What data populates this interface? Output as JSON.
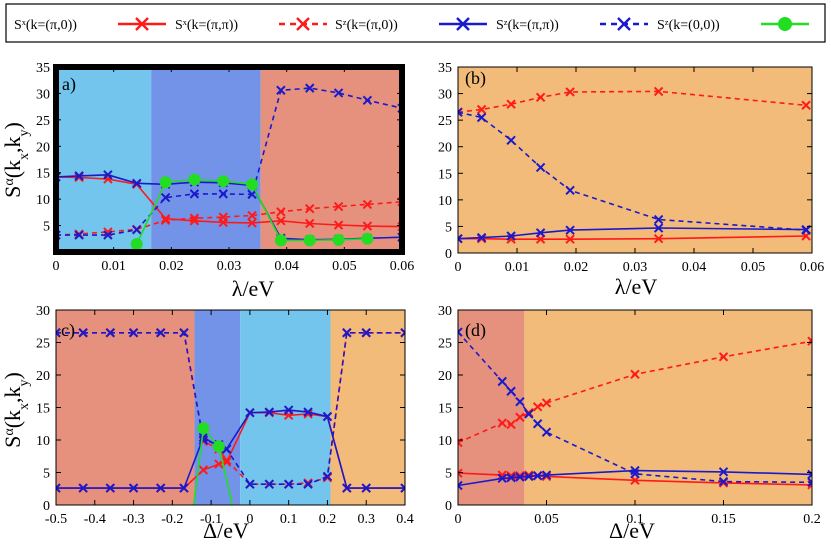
{
  "legend": [
    {
      "label": "Sˣ(k=(π,0))",
      "color": "#ff1a1a",
      "dash": "solid",
      "marker": "x"
    },
    {
      "label": "Sˣ(k=(π,π))",
      "color": "#ff1a1a",
      "dash": "dashed",
      "marker": "x"
    },
    {
      "label": "Sᶻ(k=(π,0))",
      "color": "#1a1acc",
      "dash": "solid",
      "marker": "x"
    },
    {
      "label": "Sᶻ(k=(π,π))",
      "color": "#1a1acc",
      "dash": "dashed",
      "marker": "x"
    },
    {
      "label": "Sᶻ(k=(0,0))",
      "color": "#22dd22",
      "dash": "solid",
      "marker": "circle"
    }
  ],
  "colors": {
    "light_blue": "#73c5ee",
    "mid_blue": "#7393e8",
    "salmon": "#e5917e",
    "orange": "#f2bb7a",
    "red": "#ff1a1a",
    "blue": "#1a1acc",
    "green": "#22dd22",
    "frame_a": "#000000"
  },
  "chart_data": [
    {
      "panel": "a)",
      "type": "line",
      "xlabel": "λ/eV",
      "ylabel": "Sα(kx,ky)",
      "xlim": [
        0,
        0.06
      ],
      "ylim": [
        0,
        35
      ],
      "xticks": [
        "0",
        "0.01",
        "0.02",
        "0.03",
        "0.04",
        "0.05",
        "0.06"
      ],
      "yticks": [
        "5",
        "10",
        "15",
        "20",
        "25",
        "30",
        "35"
      ],
      "regions": [
        {
          "from": 0,
          "to": 0.0165,
          "color": "light_blue"
        },
        {
          "from": 0.0165,
          "to": 0.0355,
          "color": "mid_blue"
        },
        {
          "from": 0.0355,
          "to": 0.06,
          "color": "salmon"
        }
      ],
      "series": [
        {
          "name": "Sˣ(k=(π,0))",
          "x": [
            0,
            0.004,
            0.009,
            0.014,
            0.019,
            0.024,
            0.029,
            0.034,
            0.039,
            0.044,
            0.049,
            0.054,
            0.06
          ],
          "y": [
            14.2,
            14.1,
            13.8,
            12.8,
            6.3,
            5.9,
            5.6,
            5.5,
            5.9,
            5.4,
            5.1,
            4.9,
            4.8
          ]
        },
        {
          "name": "Sˣ(k=(π,π))",
          "x": [
            0,
            0.004,
            0.009,
            0.014,
            0.019,
            0.024,
            0.029,
            0.034,
            0.039,
            0.044,
            0.049,
            0.054,
            0.06
          ],
          "y": [
            3.2,
            3.4,
            3.8,
            4.3,
            6.0,
            6.4,
            6.6,
            6.9,
            7.6,
            8.2,
            8.6,
            9.0,
            9.5
          ]
        },
        {
          "name": "Sᶻ(k=(π,0))",
          "x": [
            0,
            0.004,
            0.009,
            0.014,
            0.019,
            0.024,
            0.029,
            0.034,
            0.039,
            0.044,
            0.049,
            0.054,
            0.06
          ],
          "y": [
            14.2,
            14.4,
            14.6,
            13.0,
            12.8,
            13.2,
            13.1,
            12.6,
            2.6,
            2.3,
            2.4,
            2.6,
            2.8
          ]
        },
        {
          "name": "Sᶻ(k=(π,π))",
          "x": [
            0,
            0.004,
            0.009,
            0.014,
            0.019,
            0.024,
            0.029,
            0.034,
            0.039,
            0.044,
            0.049,
            0.054,
            0.06
          ],
          "y": [
            3.2,
            3.2,
            3.2,
            4.2,
            10.3,
            11.0,
            11.0,
            10.9,
            30.6,
            31.0,
            30.1,
            28.7,
            27.2
          ]
        },
        {
          "name": "Sᶻ(k=(0,0))",
          "x": [
            0.014,
            0.019,
            0.024,
            0.029,
            0.034,
            0.039,
            0.044,
            0.049,
            0.054
          ],
          "y": [
            1.5,
            13.2,
            13.7,
            13.4,
            12.8,
            2.2,
            2.2,
            2.3,
            2.5
          ]
        }
      ]
    },
    {
      "panel": "(b)",
      "type": "line",
      "xlabel": "λ/eV",
      "ylabel": "",
      "xlim": [
        0,
        0.06
      ],
      "ylim": [
        0,
        35
      ],
      "xticks": [
        "0",
        "0.01",
        "0.02",
        "0.03",
        "0.04",
        "0.05",
        "0.06"
      ],
      "yticks": [
        "0",
        "5",
        "10",
        "15",
        "20",
        "25",
        "30",
        "35"
      ],
      "regions": [
        {
          "from": 0,
          "to": 0.06,
          "color": "orange"
        }
      ],
      "series": [
        {
          "name": "Sˣ(k=(π,0))",
          "x": [
            0,
            0.004,
            0.009,
            0.014,
            0.019,
            0.034,
            0.059
          ],
          "y": [
            2.7,
            2.7,
            2.6,
            2.6,
            2.6,
            2.7,
            3.2
          ]
        },
        {
          "name": "Sˣ(k=(π,π))",
          "x": [
            0,
            0.004,
            0.009,
            0.014,
            0.019,
            0.034,
            0.059
          ],
          "y": [
            26.5,
            27.0,
            28.0,
            29.3,
            30.3,
            30.4,
            27.8
          ]
        },
        {
          "name": "Sᶻ(k=(π,0))",
          "x": [
            0,
            0.004,
            0.009,
            0.014,
            0.019,
            0.034,
            0.059
          ],
          "y": [
            2.7,
            2.9,
            3.2,
            3.8,
            4.3,
            4.7,
            4.4
          ]
        },
        {
          "name": "Sᶻ(k=(π,π))",
          "x": [
            0,
            0.004,
            0.009,
            0.014,
            0.019,
            0.034,
            0.059
          ],
          "y": [
            26.5,
            25.5,
            21.2,
            16.1,
            11.8,
            6.3,
            4.3
          ]
        }
      ]
    },
    {
      "panel": "c)",
      "type": "line",
      "xlabel": "Δ/eV",
      "ylabel": "Sα(kx,ky)",
      "xlim": [
        -0.5,
        0.4
      ],
      "ylim": [
        0,
        30
      ],
      "xticks": [
        "-0.5",
        "-0.4",
        "-0.3",
        "-0.2",
        "-0.1",
        "0",
        "0.1",
        "0.2",
        "0.3",
        "0.4"
      ],
      "yticks": [
        "0",
        "5",
        "10",
        "15",
        "20",
        "25",
        "30"
      ],
      "regions": [
        {
          "from": -0.5,
          "to": -0.143,
          "color": "salmon"
        },
        {
          "from": -0.143,
          "to": -0.025,
          "color": "mid_blue"
        },
        {
          "from": -0.025,
          "to": 0.208,
          "color": "light_blue"
        },
        {
          "from": 0.208,
          "to": 0.4,
          "color": "orange"
        }
      ],
      "series": [
        {
          "name": "Sˣ(k=(π,0))",
          "x": [
            -0.5,
            -0.43,
            -0.36,
            -0.3,
            -0.23,
            -0.17,
            -0.12,
            -0.08,
            -0.06,
            0,
            0.05,
            0.1,
            0.15,
            0.2,
            0.25,
            0.3,
            0.4
          ],
          "y": [
            2.6,
            2.6,
            2.6,
            2.6,
            2.6,
            2.6,
            5.4,
            6.3,
            6.6,
            14.2,
            14.2,
            13.8,
            14.0,
            13.6,
            2.6,
            2.6,
            2.6
          ]
        },
        {
          "name": "Sˣ(k=(π,π))",
          "x": [
            -0.5,
            -0.43,
            -0.36,
            -0.3,
            -0.23,
            -0.17,
            -0.12,
            -0.08,
            -0.06,
            0,
            0.05,
            0.1,
            0.15,
            0.2,
            0.25,
            0.3,
            0.4
          ],
          "y": [
            26.5,
            26.5,
            26.5,
            26.5,
            26.5,
            26.5,
            9.8,
            8.6,
            6.9,
            3.2,
            3.2,
            3.2,
            3.4,
            4.2,
            26.5,
            26.5,
            26.5
          ]
        },
        {
          "name": "Sᶻ(k=(π,0))",
          "x": [
            -0.5,
            -0.43,
            -0.36,
            -0.3,
            -0.23,
            -0.17,
            -0.12,
            -0.08,
            -0.06,
            0,
            0.05,
            0.1,
            0.15,
            0.2,
            0.25,
            0.3,
            0.4
          ],
          "y": [
            2.6,
            2.6,
            2.6,
            2.6,
            2.6,
            2.6,
            10.4,
            9.0,
            8.6,
            14.2,
            14.3,
            14.6,
            14.3,
            13.6,
            2.6,
            2.6,
            2.6
          ]
        },
        {
          "name": "Sᶻ(k=(π,π))",
          "x": [
            -0.5,
            -0.43,
            -0.36,
            -0.3,
            -0.23,
            -0.17,
            -0.12,
            -0.08,
            -0.06,
            0,
            0.05,
            0.1,
            0.15,
            0.2,
            0.25,
            0.3,
            0.4
          ],
          "y": [
            26.5,
            26.5,
            26.5,
            26.5,
            26.5,
            26.5,
            10.0,
            9.3,
            8.6,
            3.2,
            3.2,
            3.2,
            3.2,
            4.4,
            26.5,
            26.5,
            26.5
          ]
        },
        {
          "name": "Sᶻ(k=(0,0))",
          "x": [
            -0.145,
            -0.12,
            -0.08,
            -0.045
          ],
          "y": [
            0.0,
            11.8,
            9.0,
            0.0
          ]
        }
      ]
    },
    {
      "panel": "(d)",
      "type": "line",
      "xlabel": "Δ/eV",
      "ylabel": "",
      "xlim": [
        0,
        0.2
      ],
      "ylim": [
        0,
        30
      ],
      "xticks": [
        "0",
        "0.05",
        "0.1",
        "0.15",
        "0.2"
      ],
      "yticks": [
        "0",
        "5",
        "10",
        "15",
        "20",
        "25",
        "30"
      ],
      "regions": [
        {
          "from": 0,
          "to": 0.0375,
          "color": "salmon"
        },
        {
          "from": 0.0375,
          "to": 0.2,
          "color": "orange"
        }
      ],
      "series": [
        {
          "name": "Sˣ(k=(π,0))",
          "x": [
            0,
            0.025,
            0.03,
            0.035,
            0.04,
            0.045,
            0.05,
            0.1,
            0.15,
            0.2
          ],
          "y": [
            4.9,
            4.6,
            4.5,
            4.5,
            4.6,
            4.5,
            4.4,
            3.8,
            3.4,
            3.1
          ]
        },
        {
          "name": "Sˣ(k=(π,π))",
          "x": [
            0,
            0.025,
            0.03,
            0.035,
            0.04,
            0.045,
            0.05,
            0.1,
            0.15,
            0.2
          ],
          "y": [
            9.6,
            12.6,
            12.4,
            13.5,
            14.2,
            15.1,
            15.7,
            20.1,
            22.8,
            25.2
          ]
        },
        {
          "name": "Sᶻ(k=(π,0))",
          "x": [
            0,
            0.025,
            0.03,
            0.035,
            0.04,
            0.045,
            0.05,
            0.1,
            0.15,
            0.2
          ],
          "y": [
            3.0,
            4.1,
            4.2,
            4.3,
            4.4,
            4.5,
            4.6,
            5.3,
            5.1,
            4.7
          ]
        },
        {
          "name": "Sᶻ(k=(π,π))",
          "x": [
            0,
            0.025,
            0.03,
            0.035,
            0.04,
            0.045,
            0.05,
            0.1,
            0.15,
            0.2
          ],
          "y": [
            26.6,
            19.0,
            17.5,
            15.9,
            14.0,
            12.5,
            11.2,
            4.8,
            3.6,
            3.5
          ]
        }
      ]
    }
  ]
}
